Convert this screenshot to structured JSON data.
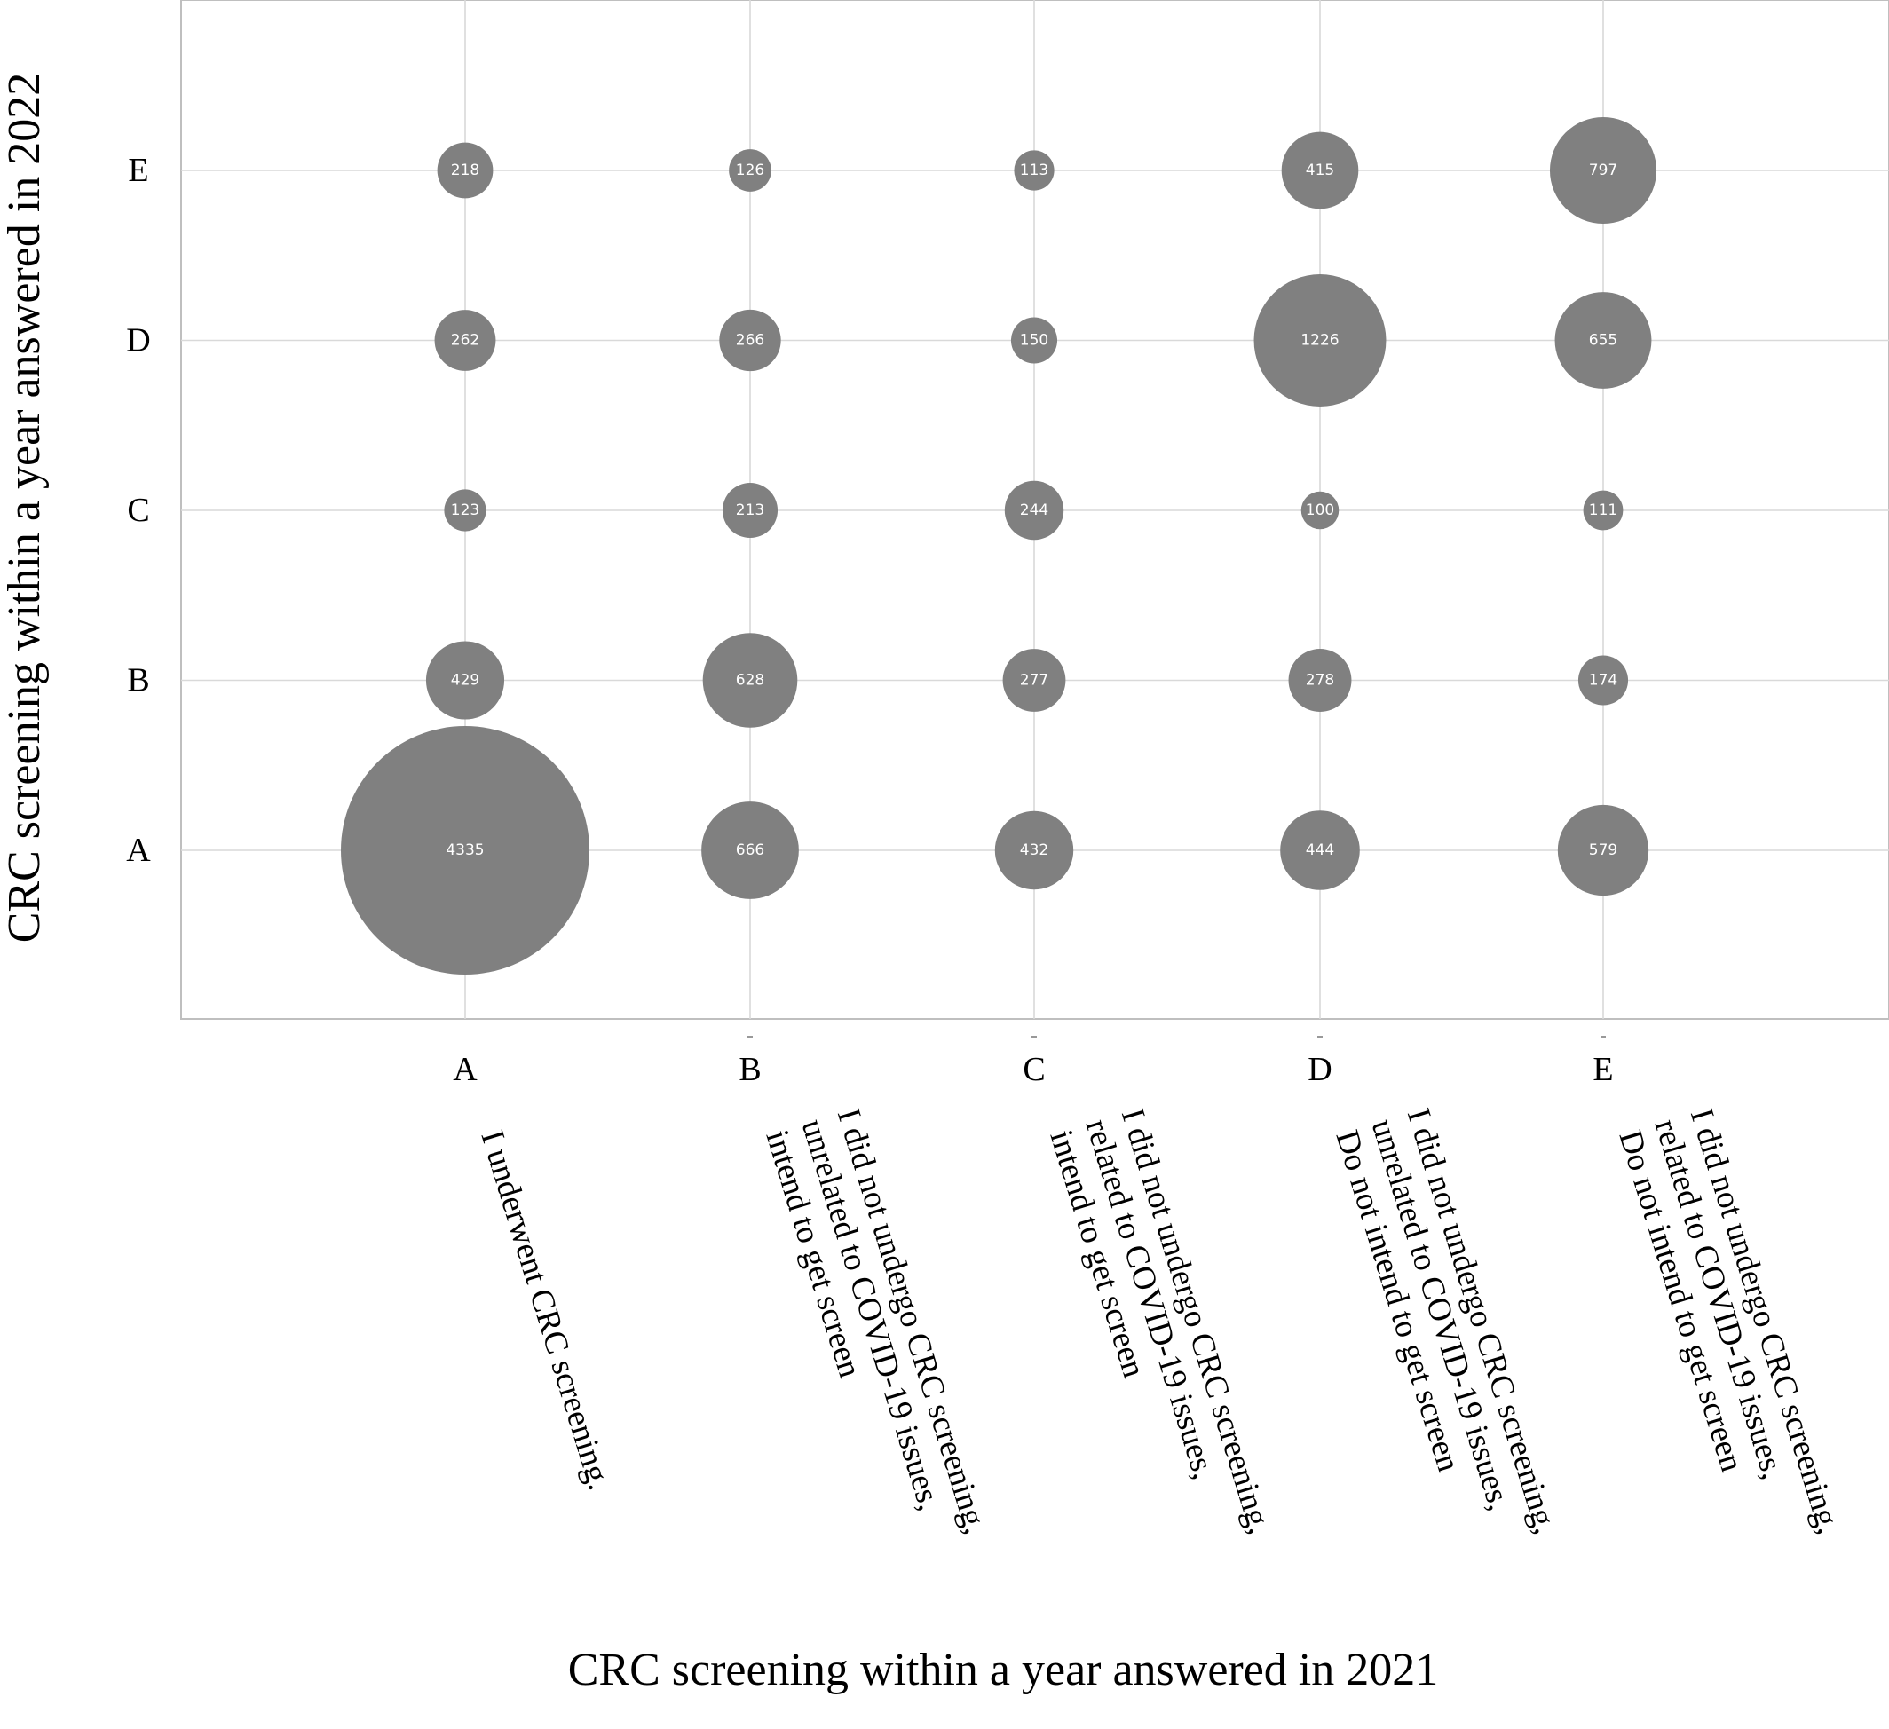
{
  "chart_data": {
    "type": "scatter",
    "subtype": "bubble",
    "xlabel": "CRC screening within a year answered in 2021",
    "ylabel": "CRC screening within a year answered in 2022",
    "x_categories": [
      "A",
      "B",
      "C",
      "D",
      "E"
    ],
    "y_categories": [
      "A",
      "B",
      "C",
      "D",
      "E"
    ],
    "x_category_descriptions": [
      [
        "I underwent CRC screening."
      ],
      [
        "I did not undergo CRC screening,",
        "unrelated to COVID-19 issues,",
        "intend to get screen"
      ],
      [
        "I did not undergo CRC screening,",
        "related to COVID-19 issues,",
        "intend to get screen"
      ],
      [
        "I did not undergo CRC screening,",
        "unrelated to COVID-19 issues,",
        "Do not intend to get screen"
      ],
      [
        "I did not undergo CRC screening,",
        "related to COVID-19 issues,",
        "Do not intend to get screen"
      ]
    ],
    "points": [
      {
        "x": "A",
        "y": "A",
        "value": 4335
      },
      {
        "x": "A",
        "y": "B",
        "value": 429
      },
      {
        "x": "A",
        "y": "C",
        "value": 123
      },
      {
        "x": "A",
        "y": "D",
        "value": 262
      },
      {
        "x": "A",
        "y": "E",
        "value": 218
      },
      {
        "x": "B",
        "y": "A",
        "value": 666
      },
      {
        "x": "B",
        "y": "B",
        "value": 628
      },
      {
        "x": "B",
        "y": "C",
        "value": 213
      },
      {
        "x": "B",
        "y": "D",
        "value": 266
      },
      {
        "x": "B",
        "y": "E",
        "value": 126
      },
      {
        "x": "C",
        "y": "A",
        "value": 432
      },
      {
        "x": "C",
        "y": "B",
        "value": 277
      },
      {
        "x": "C",
        "y": "C",
        "value": 244
      },
      {
        "x": "C",
        "y": "D",
        "value": 150
      },
      {
        "x": "C",
        "y": "E",
        "value": 113
      },
      {
        "x": "D",
        "y": "A",
        "value": 444
      },
      {
        "x": "D",
        "y": "B",
        "value": 278
      },
      {
        "x": "D",
        "y": "C",
        "value": 100
      },
      {
        "x": "D",
        "y": "D",
        "value": 1226
      },
      {
        "x": "D",
        "y": "E",
        "value": 415
      },
      {
        "x": "E",
        "y": "A",
        "value": 579
      },
      {
        "x": "E",
        "y": "B",
        "value": 174
      },
      {
        "x": "E",
        "y": "C",
        "value": 111
      },
      {
        "x": "E",
        "y": "D",
        "value": 655
      },
      {
        "x": "E",
        "y": "E",
        "value": 797
      }
    ],
    "bubble_color": "#808080",
    "grid": true,
    "legend": "none"
  }
}
